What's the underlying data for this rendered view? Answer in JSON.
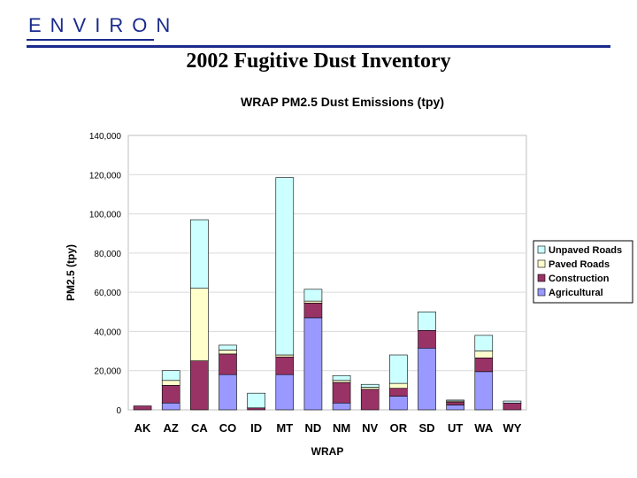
{
  "header": {
    "logo_text": "ENVIRON",
    "slide_title": "2002 Fugitive Dust Inventory"
  },
  "colors": {
    "Unpaved Roads": "#ccffff",
    "Paved Roads": "#ffffcc",
    "Construction": "#993366",
    "Agricultural": "#9999ff",
    "logo": "#1a2a8c"
  },
  "chart_data": {
    "type": "bar",
    "stacked": true,
    "title": "WRAP PM2.5 Dust Emissions (tpy)",
    "xlabel": "WRAP",
    "ylabel": "PM2.5 (tpy)",
    "ylim": [
      0,
      140000
    ],
    "yticks": [
      "0",
      "20,000",
      "40,000",
      "60,000",
      "80,000",
      "100,000",
      "120,000",
      "140,000"
    ],
    "legend_position": "right",
    "categories": [
      "AK",
      "AZ",
      "CA",
      "CO",
      "ID",
      "MT",
      "ND",
      "NM",
      "NV",
      "OR",
      "SD",
      "UT",
      "WA",
      "WY"
    ],
    "series": [
      {
        "name": "Agricultural",
        "values": [
          0,
          3500,
          0,
          18000,
          0,
          18000,
          47000,
          3500,
          0,
          7000,
          31500,
          2500,
          19500,
          0
        ]
      },
      {
        "name": "Construction",
        "values": [
          2000,
          9000,
          25000,
          10500,
          1000,
          9000,
          7500,
          10500,
          10500,
          4000,
          9000,
          1500,
          7000,
          3500
        ]
      },
      {
        "name": "Paved Roads",
        "values": [
          0,
          2500,
          37000,
          2000,
          0,
          1000,
          1000,
          1000,
          1000,
          2500,
          0,
          500,
          3500,
          0
        ]
      },
      {
        "name": "Unpaved Roads",
        "values": [
          0,
          5000,
          35000,
          2500,
          7500,
          90500,
          6000,
          2500,
          1500,
          14500,
          9500,
          500,
          8000,
          1000
        ]
      }
    ]
  }
}
